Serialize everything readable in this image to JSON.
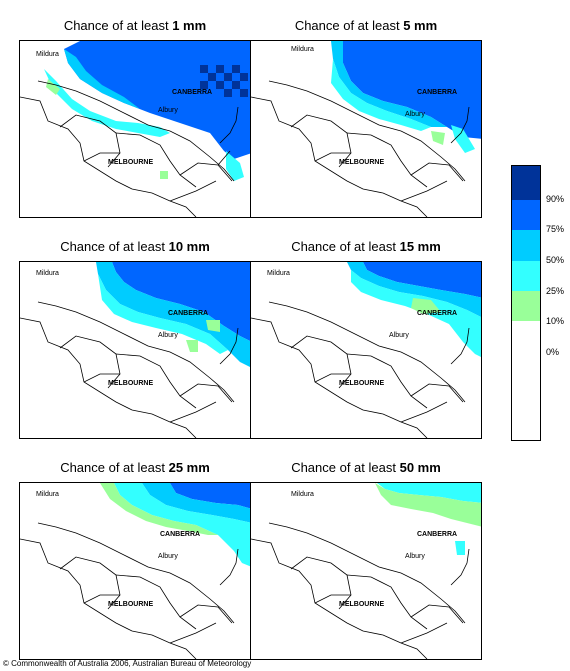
{
  "panels": [
    {
      "title_prefix": "Chance of at least ",
      "amount": "1 mm",
      "pattern_id": "p1"
    },
    {
      "title_prefix": "Chance of at least ",
      "amount": "5 mm",
      "pattern_id": "p5"
    },
    {
      "title_prefix": "Chance of at least ",
      "amount": "10 mm",
      "pattern_id": "p10"
    },
    {
      "title_prefix": "Chance of at least ",
      "amount": "15 mm",
      "pattern_id": "p15"
    },
    {
      "title_prefix": "Chance of at least ",
      "amount": "25 mm",
      "pattern_id": "p25"
    },
    {
      "title_prefix": "Chance of at least ",
      "amount": "50 mm",
      "pattern_id": "p50"
    }
  ],
  "places": {
    "mildura": "Mildura",
    "canberra": "CANBERRA",
    "albury": "Albury",
    "melbourne": "MELBOURNE"
  },
  "legend": {
    "ticks": [
      "90%",
      "75%",
      "50%",
      "25%",
      "10%",
      "0%"
    ],
    "colors": {
      "band_90_100": "#003399",
      "band_75_90": "#0066ff",
      "band_50_75": "#00ccff",
      "band_25_50": "#33ffff",
      "band_10_25": "#99ff99",
      "band_0_10": "#ffffff"
    }
  },
  "copyright": "© Commonwealth of Australia 2006, Australian Bureau of Meteorology"
}
